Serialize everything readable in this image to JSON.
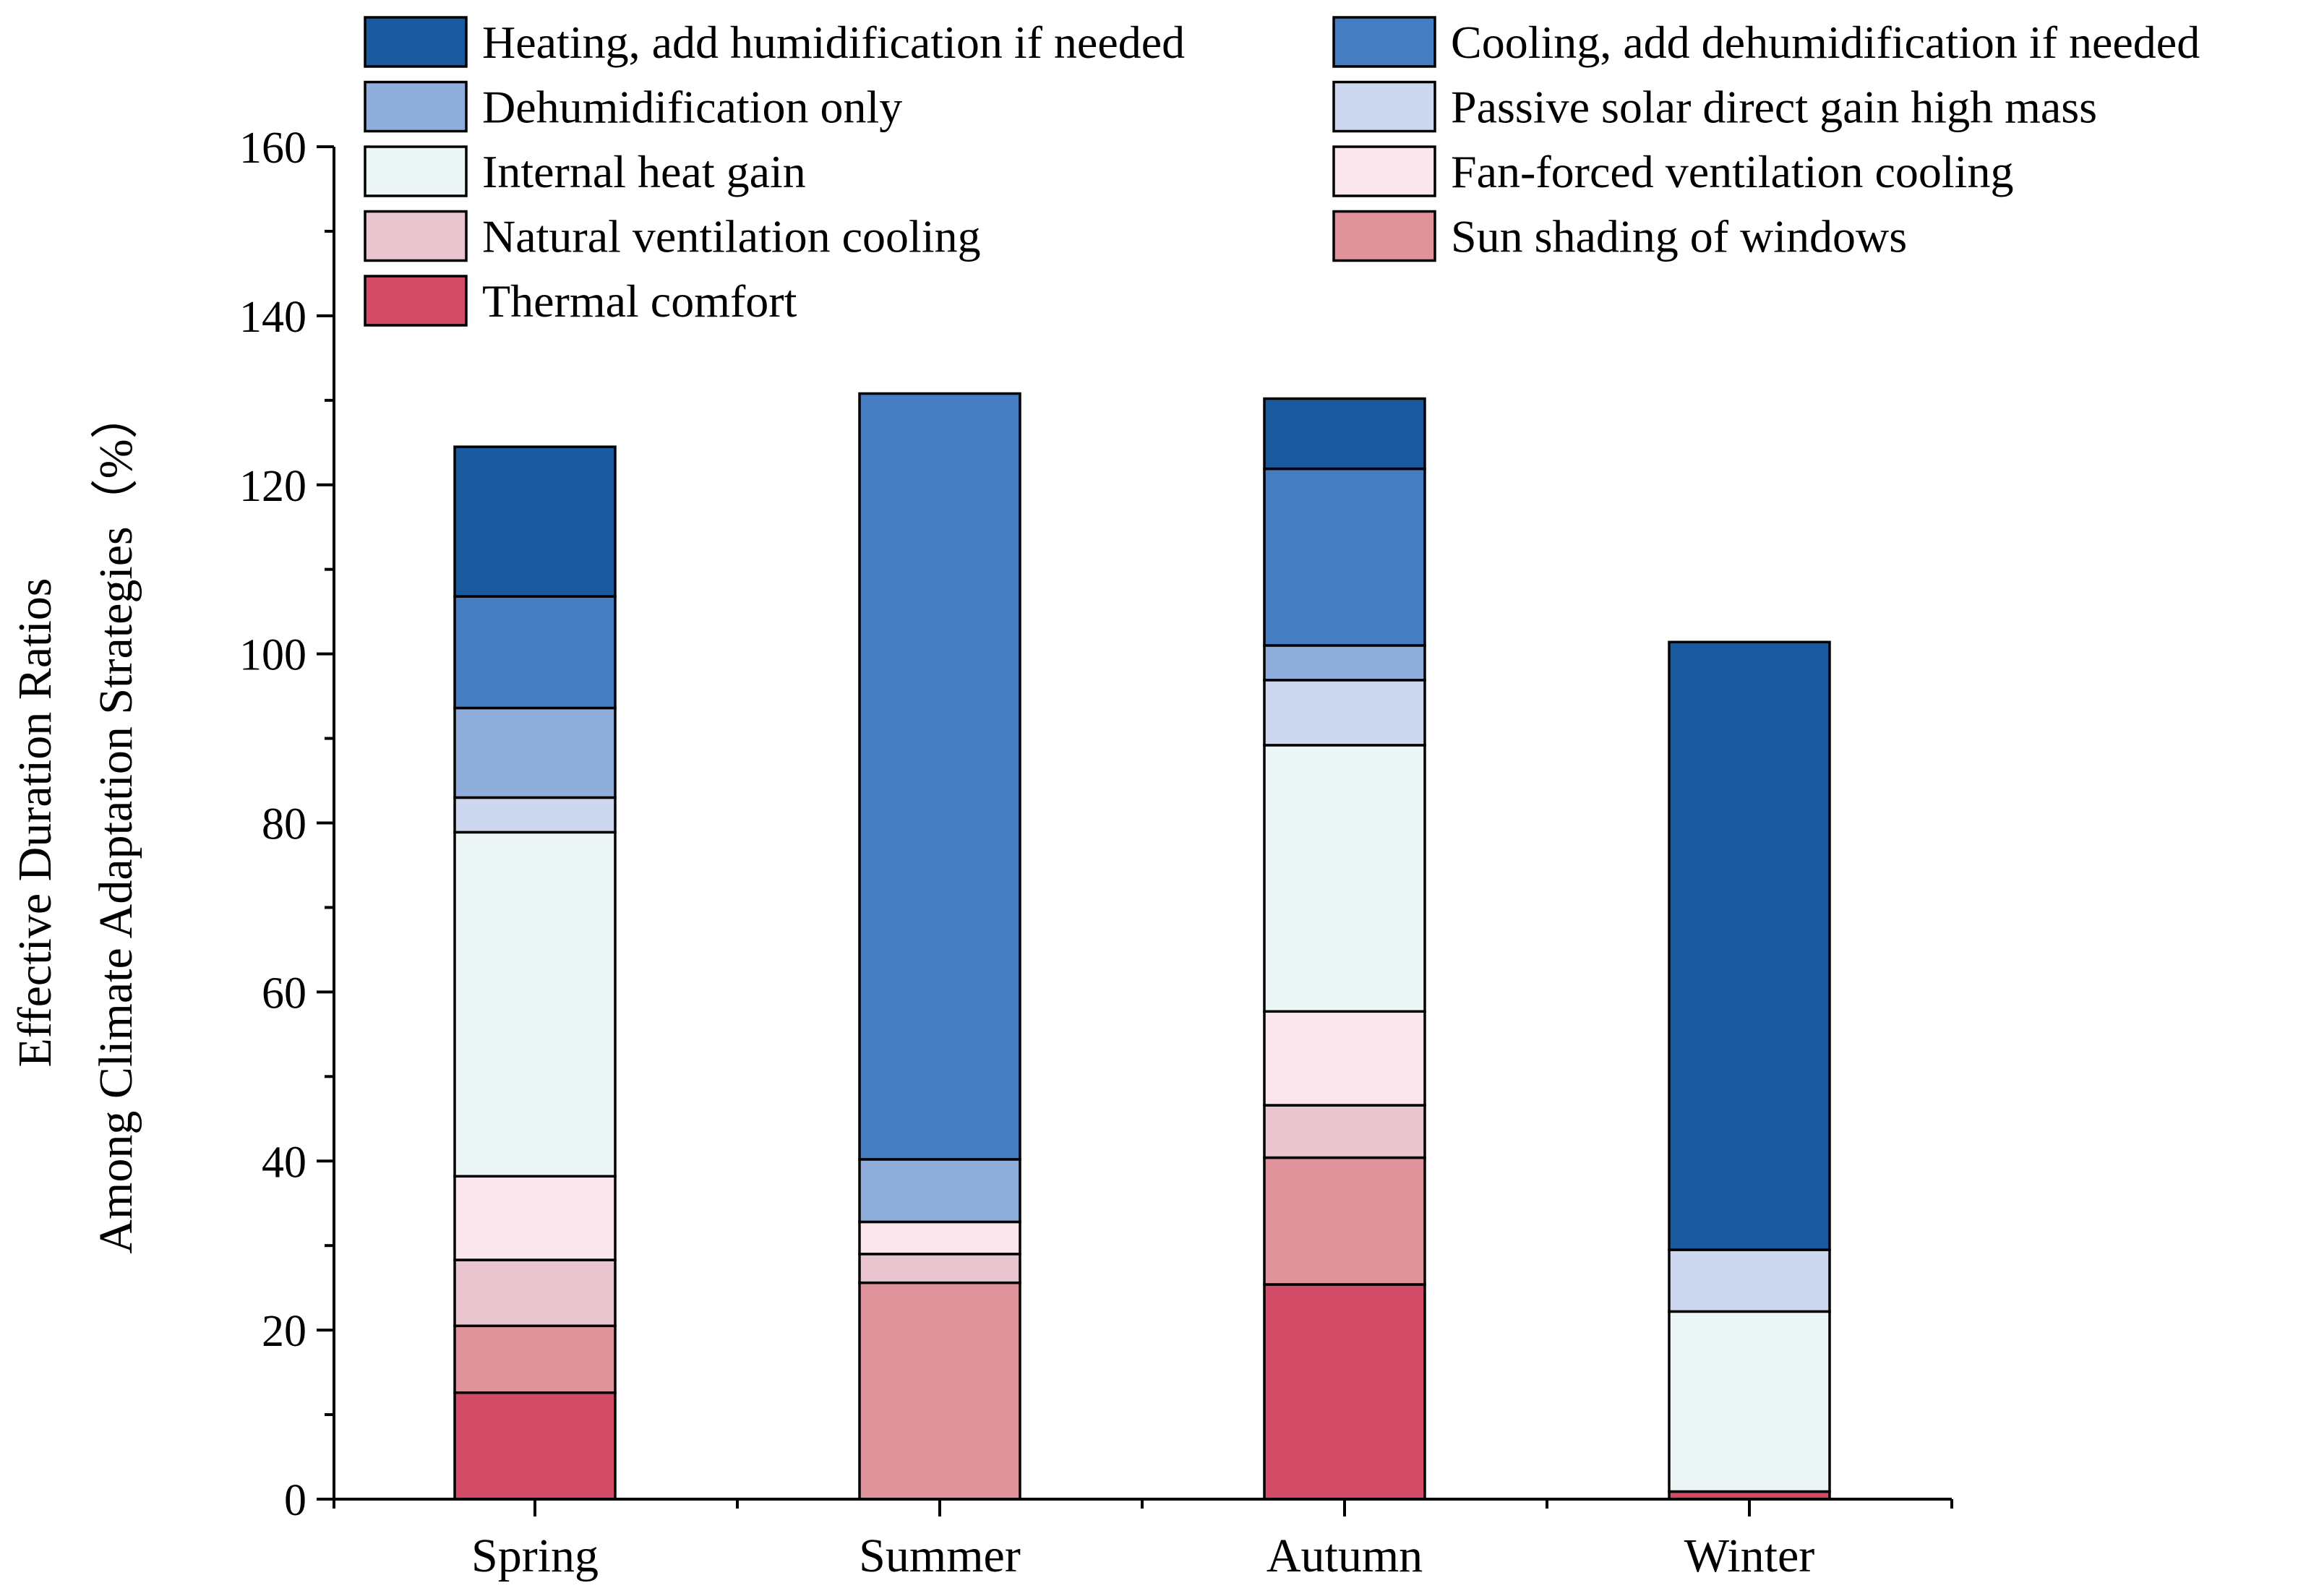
{
  "chart_data": {
    "type": "bar",
    "stacked": true,
    "title": "",
    "xlabel": "",
    "ylabel": "Effective Duration Ratios\nAmong Climate Adaptation Strategies（%）",
    "ylabel_lines": [
      "Effective Duration Ratios",
      "Among Climate Adaptation Strategies（%）"
    ],
    "ylim": [
      0,
      160
    ],
    "yticks": [
      0,
      20,
      40,
      60,
      80,
      100,
      120,
      140,
      160
    ],
    "categories": [
      "Spring",
      "Summer",
      "Autumn",
      "Winter"
    ],
    "legend_position": "top",
    "series": [
      {
        "name": "Thermal comfort",
        "color": "#d14a66",
        "values": [
          12.6,
          0,
          25.4,
          0.9
        ]
      },
      {
        "name": "Sun shading of windows",
        "color": "#e0939b",
        "values": [
          7.9,
          25.6,
          15.0,
          0
        ]
      },
      {
        "name": "Natural ventilation cooling",
        "color": "#e8c5cf",
        "values": [
          7.8,
          3.4,
          6.2,
          0
        ]
      },
      {
        "name": "Fan-forced ventilation cooling",
        "color": "#fce6ee",
        "values": [
          9.9,
          3.8,
          11.1,
          0
        ]
      },
      {
        "name": "Internal heat gain",
        "color": "#ecf6f6",
        "values": [
          40.7,
          0,
          31.5,
          21.3
        ]
      },
      {
        "name": "Passive solar direct gain high mass",
        "color": "#cdd8f0",
        "values": [
          4.1,
          0,
          7.7,
          7.3
        ]
      },
      {
        "name": "Dehumidification only",
        "color": "#8faedc",
        "values": [
          10.6,
          7.4,
          4.1,
          0
        ]
      },
      {
        "name": "Cooling, add dehumidification if needed",
        "color": "#467dc2",
        "values": [
          13.2,
          90.6,
          20.9,
          0
        ]
      },
      {
        "name": "Heating, add humidification if needed",
        "color": "#1c5a9f",
        "values": [
          17.7,
          0,
          8.3,
          71.9
        ]
      }
    ],
    "legend_order": [
      "Heating, add humidification if needed",
      "Cooling, add dehumidification if needed",
      "Dehumidification only",
      "Passive solar direct gain high mass",
      "Internal heat gain",
      "Fan-forced ventilation cooling",
      "Natural ventilation cooling",
      "Sun shading of windows",
      "Thermal comfort"
    ]
  }
}
